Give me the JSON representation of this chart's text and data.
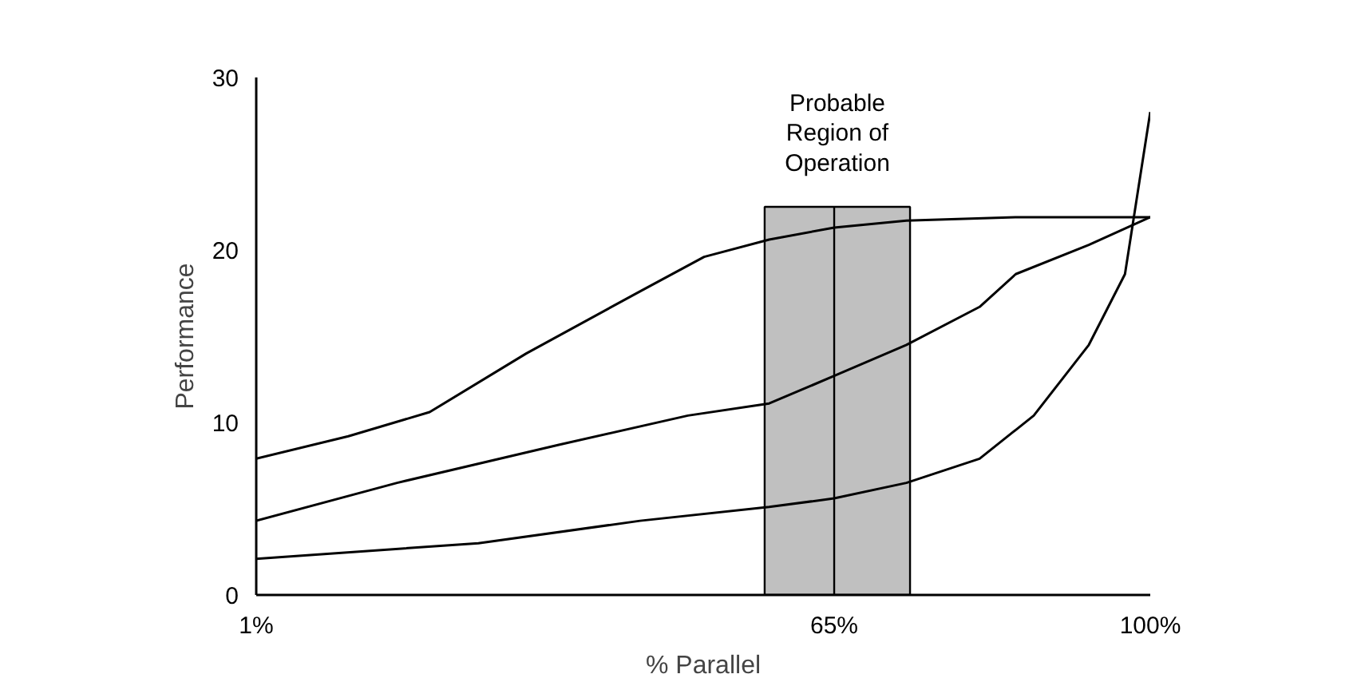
{
  "chart_data": {
    "type": "line",
    "xlabel": "% Parallel",
    "ylabel": "Performance",
    "xlim": [
      1,
      100
    ],
    "ylim": [
      0,
      30
    ],
    "xticks": [
      {
        "value": 1,
        "label": "1%"
      },
      {
        "value": 65,
        "label": "65%"
      },
      {
        "value": 100,
        "label": "100%"
      }
    ],
    "yticks": [
      0,
      10,
      20,
      30
    ],
    "grid": false,
    "marker": "none",
    "line_style": "solid",
    "bands": [
      {
        "axis": "x",
        "from": 57.3,
        "to": 73.4,
        "label": "Probable\nRegion of\nOperation",
        "color": "#c0c0c0"
      }
    ],
    "ref_lines": [
      {
        "axis": "x",
        "value": 65,
        "color": "#000000"
      }
    ],
    "series": [
      {
        "color": "#000000",
        "x": [
          1,
          11.2,
          20.2,
          30.9,
          43.5,
          50.6,
          57.8,
          65,
          73,
          85.1,
          100
        ],
        "values": [
          7.9,
          9.2,
          10.6,
          14.0,
          17.6,
          19.6,
          20.6,
          21.3,
          21.7,
          21.9,
          21.9
        ]
      },
      {
        "color": "#000000",
        "x": [
          1,
          16.6,
          34.5,
          48.8,
          57.8,
          65,
          73,
          81.1,
          85.1,
          93.2,
          100
        ],
        "values": [
          4.3,
          6.5,
          8.7,
          10.4,
          11.1,
          12.7,
          14.5,
          16.7,
          18.6,
          20.3,
          21.9
        ]
      },
      {
        "color": "#000000",
        "x": [
          1,
          25.6,
          43.5,
          57.8,
          65,
          73,
          81.1,
          87.1,
          93.2,
          97.2,
          100
        ],
        "values": [
          2.1,
          3.0,
          4.3,
          5.1,
          5.6,
          6.5,
          7.9,
          10.4,
          14.5,
          18.6,
          28.0
        ]
      }
    ]
  }
}
